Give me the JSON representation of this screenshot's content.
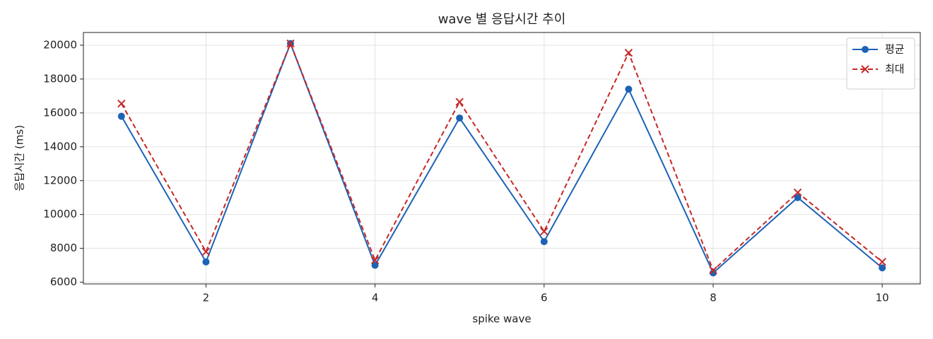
{
  "chart_data": {
    "type": "line",
    "title": "wave 별 응답시간 추이",
    "x_label": "spike wave",
    "y_label": "응답시간 (ms)",
    "x": [
      1,
      2,
      3,
      4,
      5,
      6,
      7,
      8,
      9,
      10
    ],
    "series": [
      {
        "name": "평균",
        "color": "#1c63b7",
        "marker": "circle",
        "dash": "solid",
        "values": [
          15800,
          7200,
          20100,
          7000,
          15700,
          8400,
          17400,
          6550,
          11000,
          6850
        ]
      },
      {
        "name": "최대",
        "color": "#c62828",
        "marker": "x",
        "dash": "dashed",
        "values": [
          16550,
          7800,
          20100,
          7300,
          16650,
          9000,
          19550,
          6700,
          11300,
          7200
        ]
      }
    ],
    "xlim": [
      0.55,
      10.45
    ],
    "ylim": [
      5900,
      20750
    ],
    "xticks": [
      2,
      4,
      6,
      8,
      10
    ],
    "yticks": [
      6000,
      8000,
      10000,
      12000,
      14000,
      16000,
      18000,
      20000
    ],
    "grid": true,
    "legend": "upper right"
  }
}
